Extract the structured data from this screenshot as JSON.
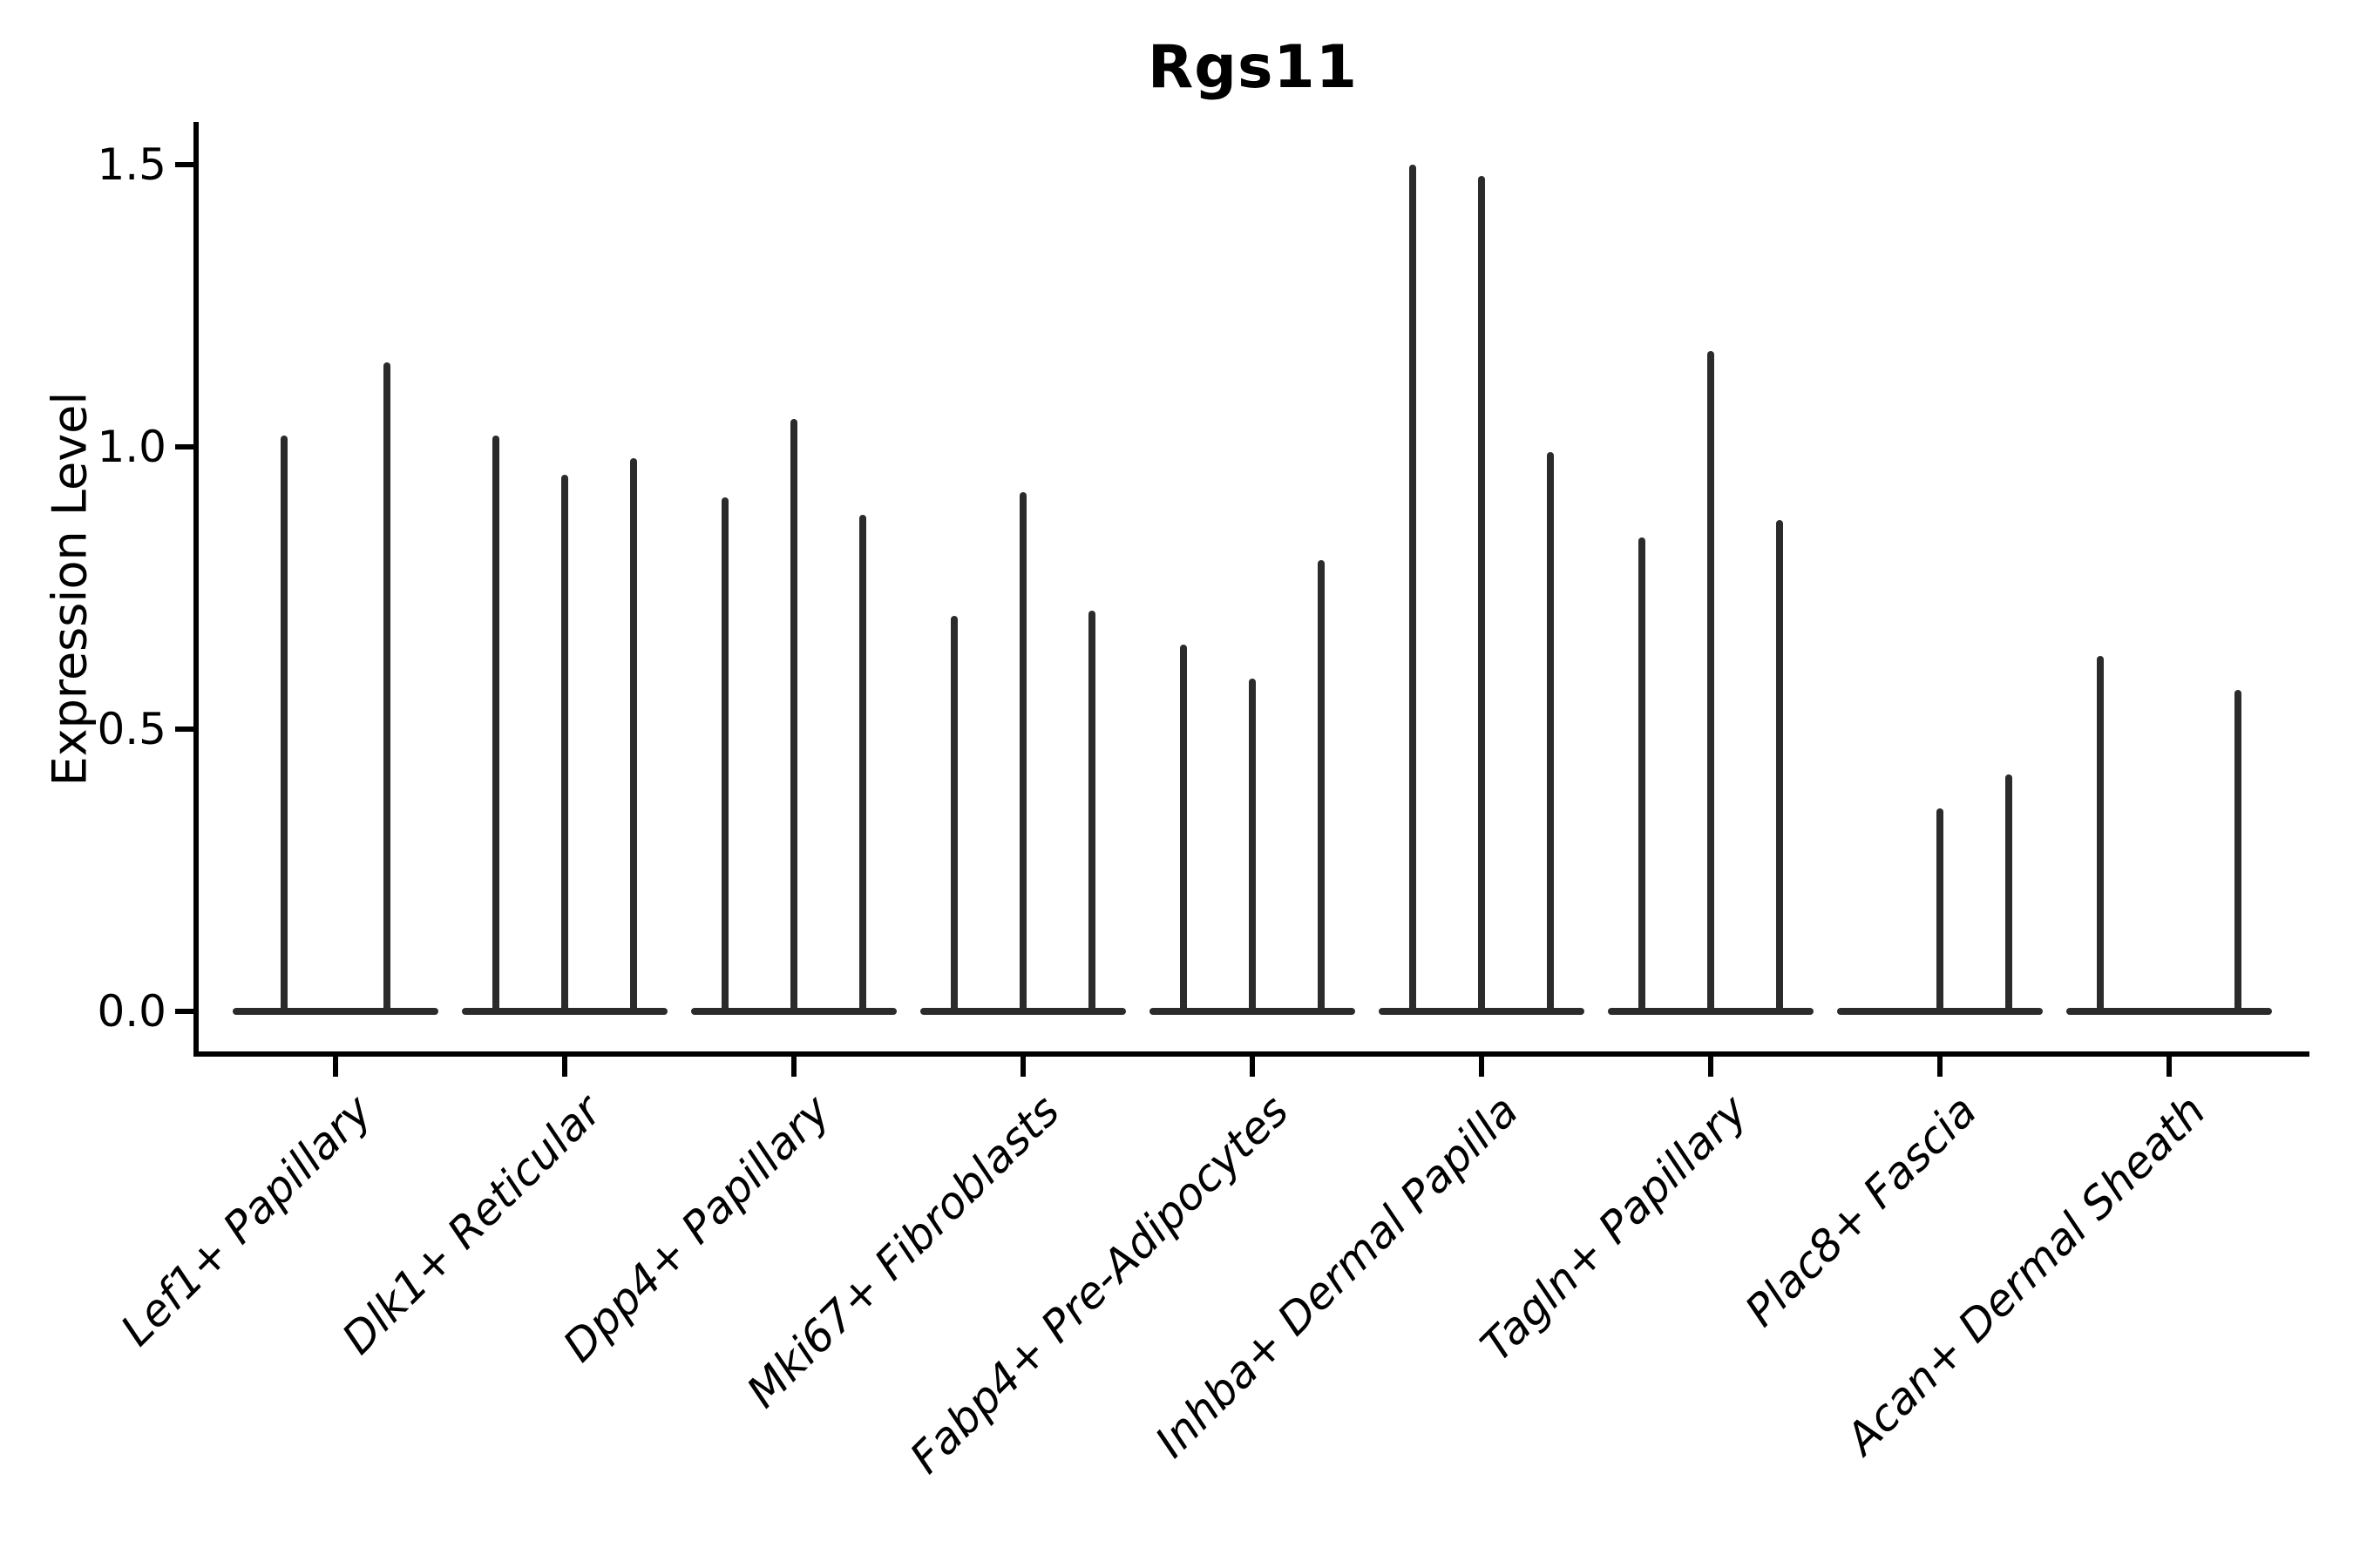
{
  "chart_data": {
    "type": "violin",
    "title": "Rgs11",
    "ylabel": "Expression Level",
    "xlabel": "",
    "yticks": [
      "0.0",
      "0.5",
      "1.0",
      "1.5"
    ],
    "ylim": [
      -0.08,
      1.58
    ],
    "grid": false,
    "legend": "none",
    "groups": [
      {
        "category": "Lef1+ Papillary",
        "violin_max_values": [
          1.02,
          1.15
        ]
      },
      {
        "category": "Dlk1+ Reticular",
        "violin_max_values": [
          1.02,
          0.95,
          0.98
        ]
      },
      {
        "category": "Dpp4+ Papillary",
        "violin_max_values": [
          0.91,
          1.05,
          0.88
        ]
      },
      {
        "category": "Mki67+ Fibroblasts",
        "violin_max_values": [
          0.7,
          0.92,
          0.71
        ]
      },
      {
        "category": "Fabp4+ Pre-Adipocytes",
        "violin_max_values": [
          0.65,
          0.59,
          0.8
        ]
      },
      {
        "category": "Inhba+ Dermal Papilla",
        "violin_max_values": [
          1.5,
          1.48,
          0.99
        ]
      },
      {
        "category": "Tagln+ Papillary",
        "violin_max_values": [
          0.84,
          1.17,
          0.87
        ]
      },
      {
        "category": "Plac8+ Fascia",
        "violin_max_values": [
          0.0,
          0.36,
          0.42
        ]
      },
      {
        "category": "Acan+ Dermal Sheath",
        "violin_max_values": [
          0.63,
          0.0,
          0.57
        ]
      }
    ],
    "colors": {
      "violin": "#2b2b2b",
      "axis": "#000000",
      "text": "#000000",
      "background": "#ffffff"
    }
  }
}
